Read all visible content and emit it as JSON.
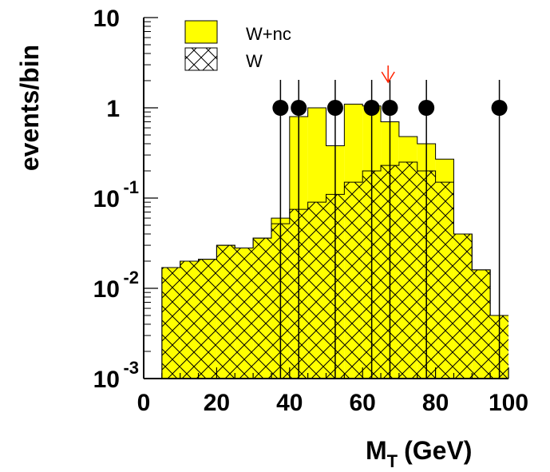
{
  "chart_data": {
    "type": "histogram",
    "title": "",
    "xlabel": "M",
    "xlabel_sub": "T",
    "xlabel_unit": "(GeV)",
    "ylabel": "events/bin",
    "xlim": [
      0,
      100
    ],
    "ylim": [
      0.001,
      10
    ],
    "yscale": "log",
    "bin_edges": [
      0,
      5,
      10,
      15,
      20,
      25,
      30,
      35,
      40,
      45,
      50,
      55,
      60,
      65,
      70,
      75,
      80,
      85,
      90,
      95,
      100
    ],
    "x_ticks": [
      0,
      20,
      40,
      60,
      80,
      100
    ],
    "x_tick_labels": [
      "0",
      "20",
      "40",
      "60",
      "80",
      "100"
    ],
    "y_ticks": [
      {
        "value": 10,
        "base": "10",
        "exp": ""
      },
      {
        "value": 1,
        "base": "1",
        "exp": ""
      },
      {
        "value": 0.1,
        "base": "10",
        "exp": "-1"
      },
      {
        "value": 0.01,
        "base": "10",
        "exp": "-2"
      },
      {
        "value": 0.001,
        "base": "10",
        "exp": "-3"
      }
    ],
    "series": [
      {
        "name": "W+nc",
        "style": "filled",
        "color": "#ffff00",
        "values": [
          0,
          0.017,
          0.02,
          0.021,
          0.03,
          0.028,
          0.036,
          0.06,
          0.8,
          1.0,
          0.38,
          1.1,
          1.05,
          0.7,
          0.48,
          0.4,
          0.27,
          0.04,
          0.016,
          0.005
        ]
      },
      {
        "name": "W",
        "style": "crosshatch",
        "color": "#000000",
        "values": [
          0,
          0.017,
          0.02,
          0.021,
          0.03,
          0.028,
          0.036,
          0.052,
          0.075,
          0.09,
          0.11,
          0.15,
          0.2,
          0.23,
          0.25,
          0.2,
          0.15,
          0.04,
          0.016,
          0.005
        ]
      }
    ],
    "data_points": {
      "x": [
        37.5,
        42.5,
        52.5,
        62.5,
        67.5,
        77.5,
        97.5
      ],
      "y": [
        1,
        1,
        1,
        1,
        1,
        1,
        1
      ],
      "color": "#000000"
    },
    "annotations": [
      {
        "type": "arrow",
        "x": 67,
        "color": "#ff2200"
      }
    ],
    "legend": {
      "placement": "top-left",
      "entries": [
        {
          "label": "W+nc",
          "swatch": "filled"
        },
        {
          "label": "W",
          "swatch": "crosshatch"
        }
      ]
    }
  }
}
